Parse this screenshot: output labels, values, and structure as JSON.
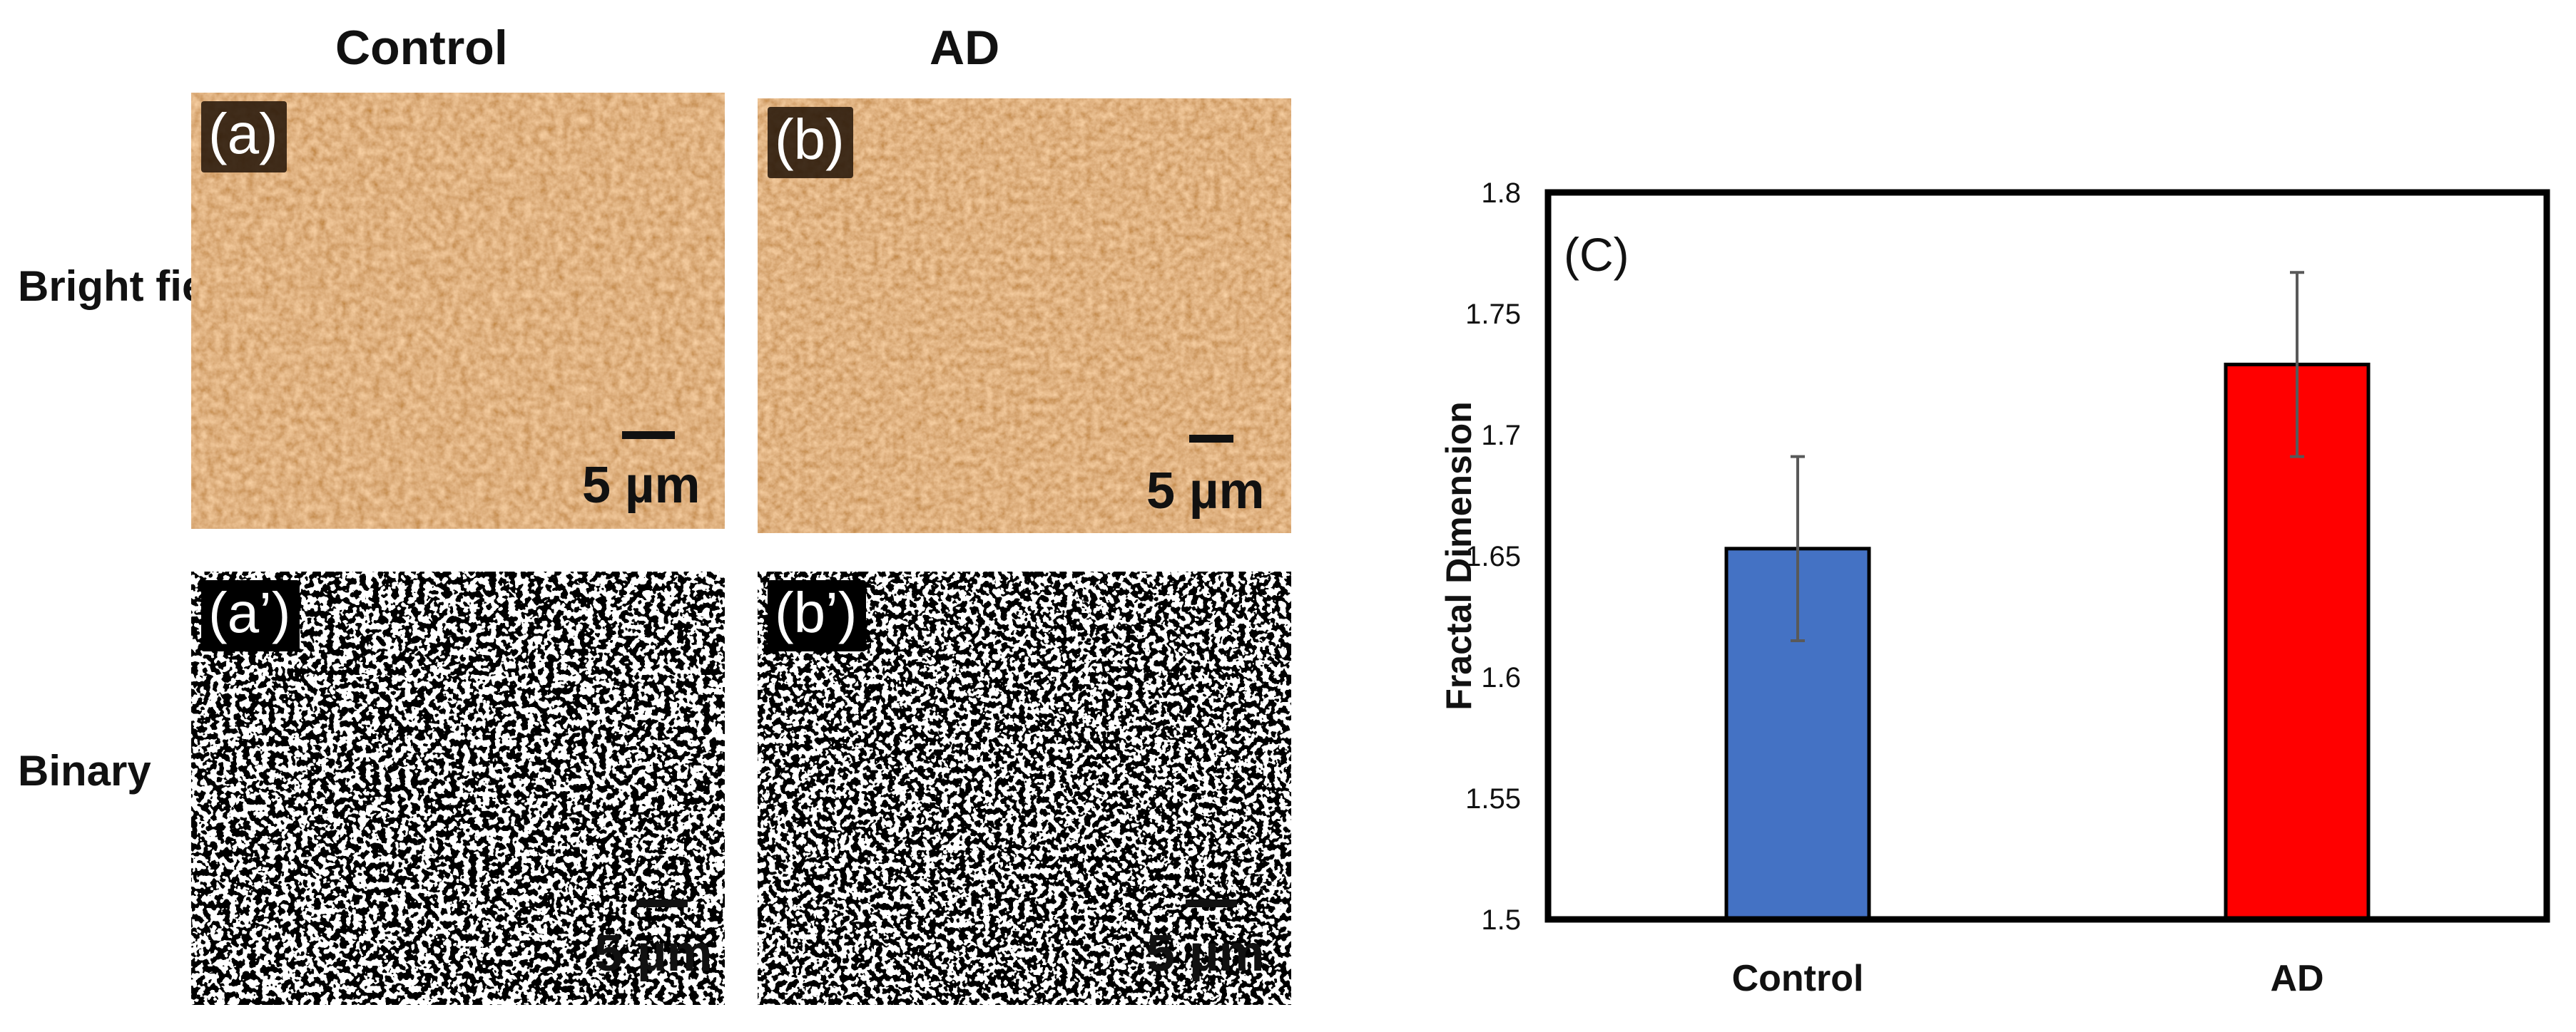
{
  "figure": {
    "column_headers": [
      "Control",
      "AD"
    ],
    "row_headers": [
      "Bright field",
      "Binary"
    ],
    "panels": [
      {
        "tag": "(a)",
        "scale_label": "5 µm"
      },
      {
        "tag": "(b)",
        "scale_label": "5 µm"
      },
      {
        "tag": "(a’)",
        "scale_label": "5 µm"
      },
      {
        "tag": "(b’)",
        "scale_label": "5 µm"
      }
    ]
  },
  "colors": {
    "brightfield_base": "#d9955a",
    "control_bar": "#4472c4",
    "ad_bar": "#ff0000",
    "axis": "#000000",
    "errorbar": "#595959"
  },
  "chart_data": {
    "type": "bar",
    "panel_label": "(C)",
    "categories": [
      "Control",
      "AD"
    ],
    "values": [
      1.653,
      1.729
    ],
    "errors": [
      0.038,
      0.038
    ],
    "ylabel": "Fractal Dimension",
    "ylim": [
      1.5,
      1.8
    ],
    "yticks": [
      "1.5",
      "1.55",
      "1.6",
      "1.65",
      "1.7",
      "1.75",
      "1.8"
    ],
    "grid": false,
    "legend": "none",
    "title": "",
    "xlabel": ""
  }
}
